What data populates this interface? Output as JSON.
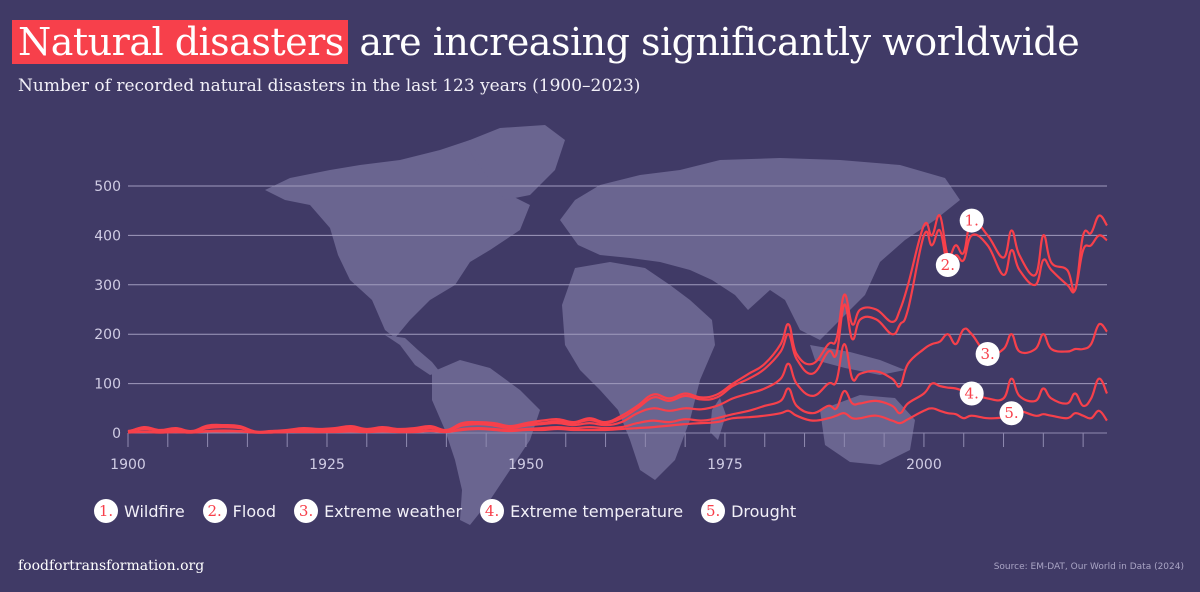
{
  "header": {
    "title_highlight": "Natural disasters",
    "title_rest": "are increasing significantly worldwide",
    "subtitle": "Number of recorded natural disasters in the last 123 years (1900–2023)"
  },
  "footer": {
    "site": "foodfortransformation.org",
    "source": "Source: EM-DAT, Our World in Data (2024)"
  },
  "colors": {
    "background": "#403a66",
    "line": "#f7404b",
    "map": "#6a6590",
    "grid": "#8f8ab0",
    "highlight": "#f7404b"
  },
  "chart_data": {
    "type": "line",
    "title": "Natural disasters are increasing significantly worldwide",
    "subtitle": "Number of recorded natural disasters in the last 123 years (1900–2023)",
    "xlabel": "",
    "ylabel": "",
    "xlim": [
      1900,
      2023
    ],
    "ylim": [
      0,
      500
    ],
    "grid": true,
    "legend_position": "bottom-left",
    "x_ticks": [
      "1900",
      "1925",
      "1950",
      "1975",
      "2000"
    ],
    "y_ticks": [
      "0",
      "100",
      "200",
      "300",
      "400",
      "500"
    ],
    "x": [
      1900,
      1902,
      1904,
      1906,
      1908,
      1910,
      1912,
      1914,
      1916,
      1918,
      1920,
      1922,
      1924,
      1926,
      1928,
      1930,
      1932,
      1934,
      1936,
      1938,
      1940,
      1942,
      1944,
      1946,
      1948,
      1950,
      1952,
      1954,
      1956,
      1958,
      1960,
      1962,
      1964,
      1966,
      1968,
      1970,
      1972,
      1974,
      1976,
      1978,
      1980,
      1982,
      1983,
      1984,
      1986,
      1988,
      1989,
      1990,
      1991,
      1992,
      1994,
      1996,
      1997,
      1998,
      2000,
      2001,
      2002,
      2003,
      2004,
      2005,
      2006,
      2008,
      2010,
      2011,
      2012,
      2014,
      2015,
      2016,
      2018,
      2019,
      2020,
      2021,
      2022,
      2023
    ],
    "series": [
      {
        "name": "Wildfire",
        "label": "1.",
        "values": [
          2,
          12,
          6,
          10,
          4,
          15,
          16,
          14,
          3,
          4,
          6,
          10,
          8,
          10,
          14,
          8,
          12,
          8,
          10,
          14,
          6,
          20,
          22,
          20,
          14,
          20,
          25,
          28,
          22,
          30,
          22,
          35,
          55,
          78,
          70,
          80,
          72,
          78,
          100,
          120,
          140,
          180,
          220,
          160,
          140,
          180,
          190,
          280,
          220,
          250,
          250,
          225,
          250,
          300,
          420,
          400,
          440,
          360,
          380,
          365,
          430,
          400,
          355,
          410,
          360,
          320,
          400,
          345,
          330,
          290,
          400,
          405,
          440,
          420
        ]
      },
      {
        "name": "Flood",
        "label": "2.",
        "values": [
          4,
          8,
          5,
          8,
          3,
          12,
          14,
          12,
          2,
          3,
          5,
          8,
          7,
          8,
          10,
          6,
          10,
          6,
          8,
          12,
          5,
          18,
          20,
          18,
          12,
          18,
          20,
          24,
          20,
          26,
          20,
          30,
          50,
          72,
          65,
          75,
          68,
          72,
          95,
          110,
          130,
          165,
          200,
          150,
          120,
          165,
          160,
          260,
          190,
          230,
          230,
          200,
          220,
          250,
          400,
          380,
          410,
          340,
          360,
          350,
          400,
          380,
          320,
          370,
          330,
          300,
          350,
          330,
          300,
          290,
          370,
          380,
          400,
          390
        ]
      },
      {
        "name": "Extreme weather",
        "label": "3.",
        "values": [
          3,
          10,
          4,
          6,
          2,
          10,
          12,
          10,
          2,
          2,
          4,
          6,
          5,
          6,
          8,
          5,
          8,
          5,
          6,
          10,
          4,
          15,
          18,
          15,
          10,
          15,
          18,
          20,
          16,
          20,
          16,
          22,
          40,
          50,
          45,
          50,
          48,
          55,
          70,
          80,
          90,
          110,
          140,
          100,
          75,
          100,
          105,
          180,
          110,
          120,
          125,
          110,
          95,
          140,
          170,
          180,
          185,
          200,
          180,
          210,
          200,
          160,
          170,
          200,
          165,
          170,
          200,
          170,
          165,
          170,
          170,
          180,
          220,
          205
        ]
      },
      {
        "name": "Extreme temperature",
        "label": "4.",
        "values": [
          1,
          3,
          1,
          2,
          1,
          4,
          5,
          4,
          1,
          1,
          2,
          3,
          2,
          3,
          4,
          2,
          4,
          2,
          3,
          5,
          2,
          8,
          10,
          8,
          6,
          8,
          10,
          12,
          10,
          12,
          10,
          12,
          20,
          25,
          22,
          28,
          25,
          30,
          38,
          45,
          55,
          65,
          90,
          55,
          40,
          55,
          50,
          85,
          60,
          60,
          65,
          55,
          40,
          60,
          80,
          100,
          95,
          92,
          90,
          85,
          80,
          70,
          70,
          110,
          75,
          65,
          90,
          70,
          60,
          80,
          55,
          70,
          110,
          80
        ]
      },
      {
        "name": "Drought",
        "label": "5.",
        "values": [
          1,
          2,
          1,
          2,
          1,
          3,
          3,
          3,
          1,
          1,
          2,
          2,
          2,
          2,
          3,
          2,
          3,
          2,
          2,
          4,
          2,
          6,
          8,
          6,
          4,
          6,
          6,
          8,
          6,
          6,
          6,
          8,
          10,
          12,
          15,
          18,
          20,
          22,
          30,
          32,
          35,
          40,
          45,
          35,
          25,
          30,
          35,
          40,
          30,
          30,
          35,
          25,
          20,
          28,
          45,
          50,
          45,
          40,
          38,
          30,
          35,
          30,
          32,
          40,
          45,
          35,
          38,
          35,
          30,
          40,
          35,
          30,
          45,
          25
        ]
      }
    ],
    "annotations": [
      {
        "label": "1.",
        "series": "Wildfire",
        "year": 2006
      },
      {
        "label": "2.",
        "series": "Flood",
        "year": 2003
      },
      {
        "label": "3.",
        "series": "Extreme weather",
        "year": 2008
      },
      {
        "label": "4.",
        "series": "Extreme temperature",
        "year": 2006
      },
      {
        "label": "5.",
        "series": "Drought",
        "year": 2011
      }
    ]
  },
  "legend": [
    {
      "num": "1.",
      "label": "Wildfire"
    },
    {
      "num": "2.",
      "label": "Flood"
    },
    {
      "num": "3.",
      "label": "Extreme weather"
    },
    {
      "num": "4.",
      "label": "Extreme temperature"
    },
    {
      "num": "5.",
      "label": "Drought"
    }
  ]
}
